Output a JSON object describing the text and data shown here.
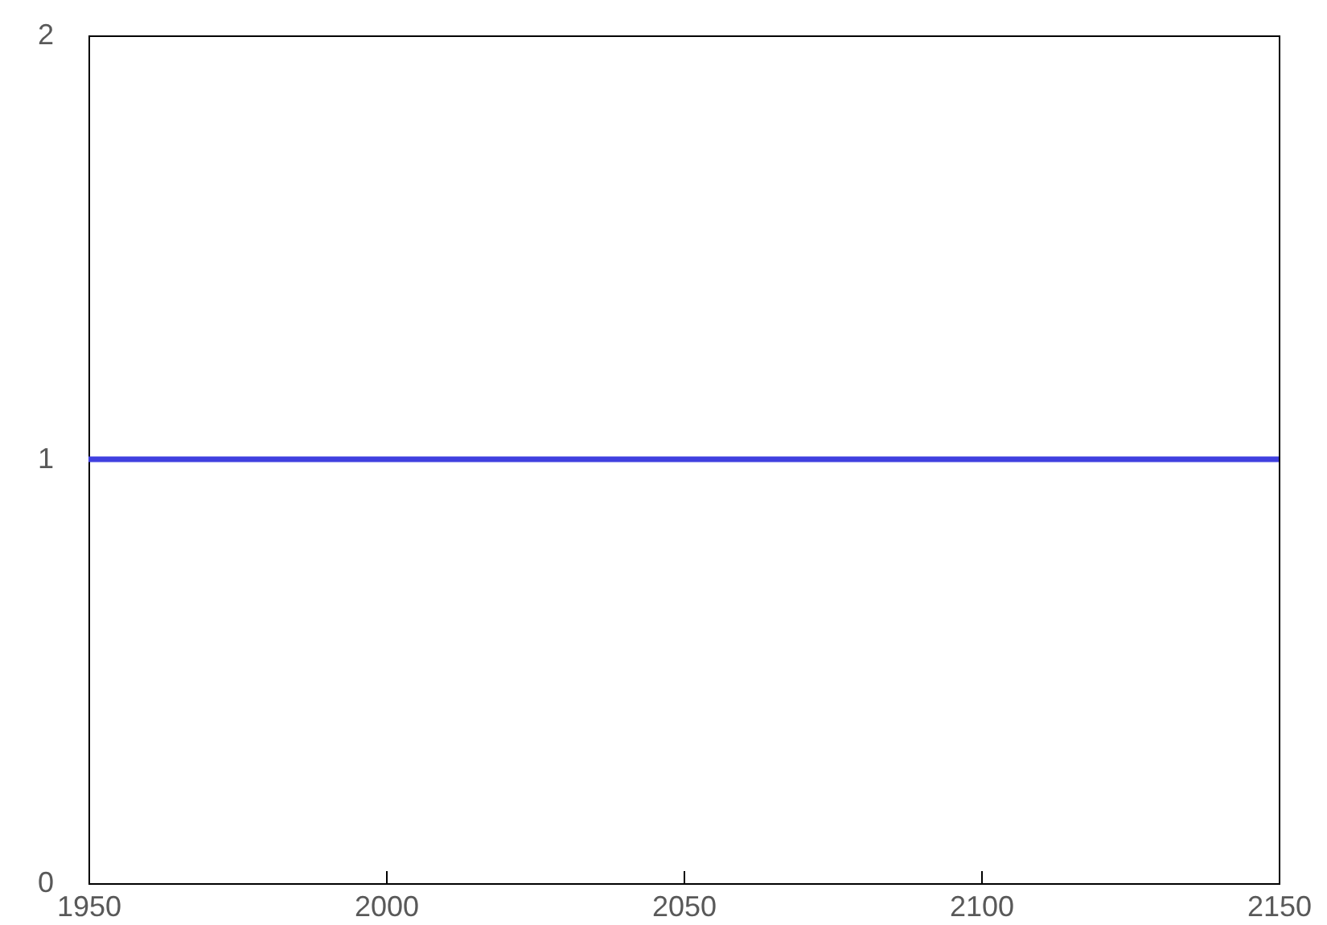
{
  "chart_data": {
    "type": "line",
    "x": [
      1950,
      2150
    ],
    "series": [
      {
        "color": "#4040e0",
        "values": [
          1,
          1
        ]
      }
    ],
    "xlim": [
      1950,
      2150
    ],
    "xticks": [
      1950,
      2000,
      2050,
      2100,
      2150
    ],
    "ylim": [
      0,
      2
    ],
    "yticks": [
      0,
      1,
      2
    ],
    "grid": false,
    "marker": "none",
    "line_style": "solid"
  }
}
